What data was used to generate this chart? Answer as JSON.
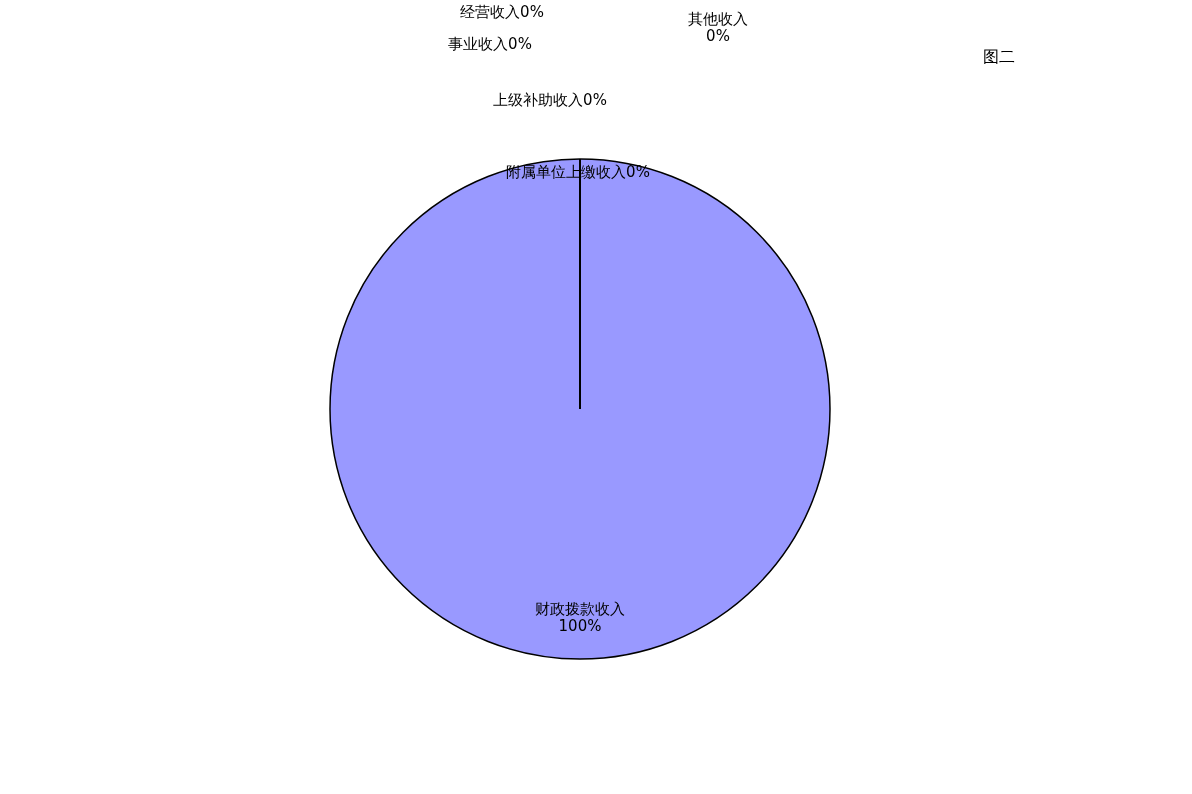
{
  "chart_data": {
    "type": "pie",
    "title": "图二",
    "categories": [
      "财政拨款收入",
      "上级补助收入",
      "事业收入",
      "经营收入",
      "附属单位上缴收入",
      "其他收入"
    ],
    "values": [
      100,
      0,
      0,
      0,
      0,
      0
    ],
    "colors": [
      "#9999ff",
      "#993366",
      "#ffffcc",
      "#ccffff",
      "#660066",
      "#ff8080"
    ],
    "value_labels": [
      "100%",
      "0%",
      "0%",
      "0%",
      "0%",
      "0%"
    ],
    "legend": false
  }
}
